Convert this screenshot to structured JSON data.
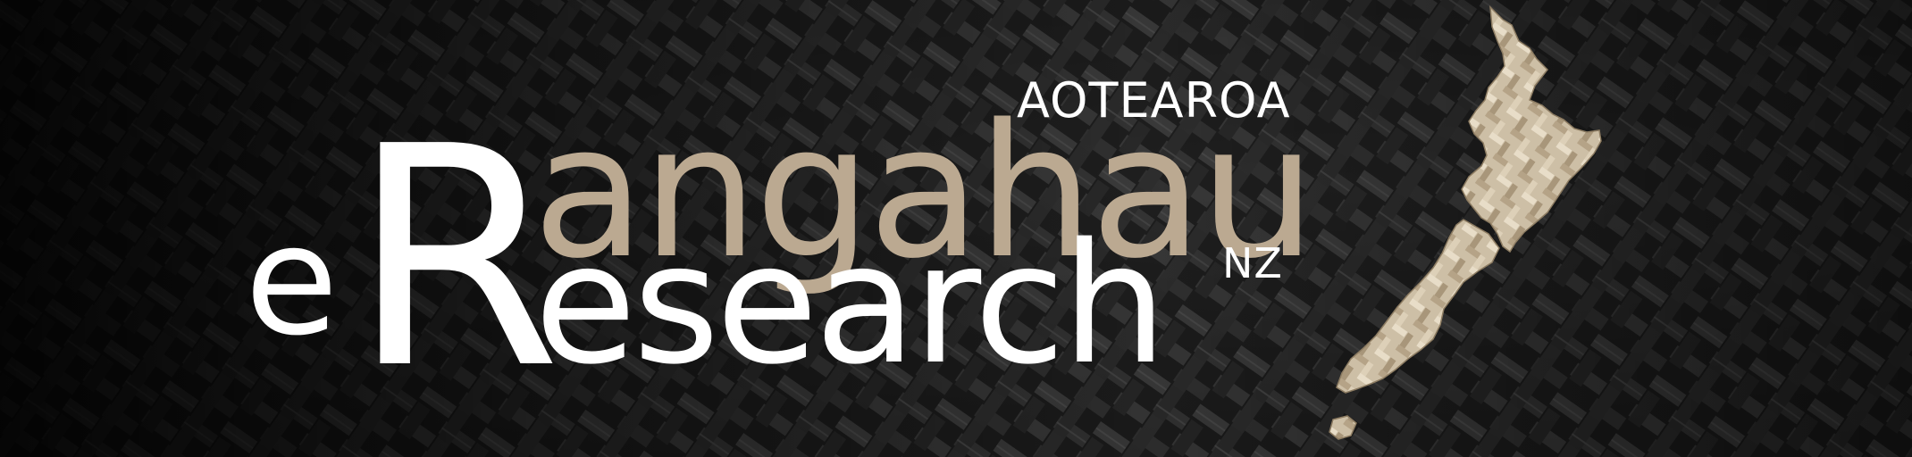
{
  "logo": {
    "top_word": "AOTEAROA",
    "main_word": "angahau",
    "initial_e": "e",
    "initial_R": "R",
    "second_word": "esearch",
    "suffix": "NZ"
  },
  "colors": {
    "gold": "#bba991",
    "white": "#ffffff",
    "background": "#111111"
  },
  "icons": {
    "map": "new-zealand-map-icon",
    "texture": "woven-flax-texture"
  }
}
